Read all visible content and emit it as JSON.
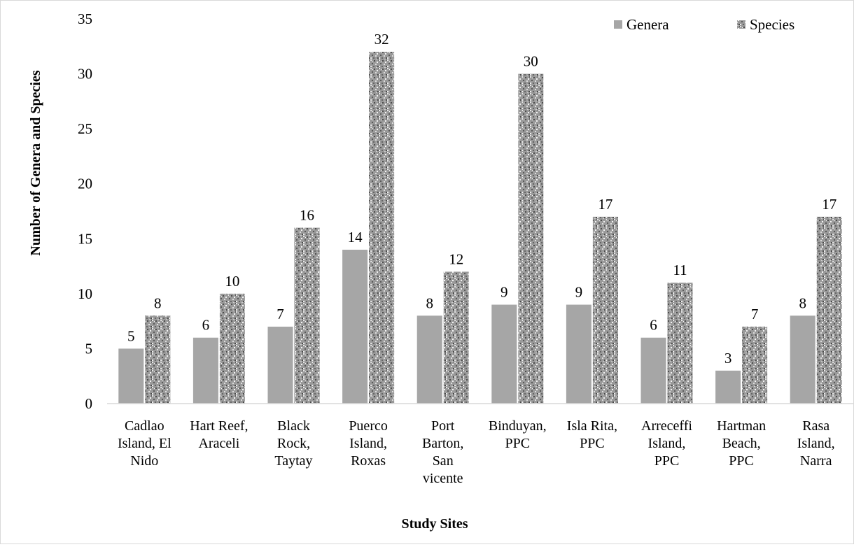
{
  "chart_data": {
    "type": "bar",
    "title": "",
    "xlabel": "Study Sites",
    "ylabel": "Number of Genera  and Species",
    "ylim": [
      0,
      35
    ],
    "yticks": [
      0,
      5,
      10,
      15,
      20,
      25,
      30,
      35
    ],
    "grid": false,
    "legend_position": "top-right",
    "categories": [
      [
        "Cadlao",
        "Island, El",
        "Nido"
      ],
      [
        "Hart Reef,",
        "Araceli"
      ],
      [
        "Black",
        "Rock,",
        "Taytay"
      ],
      [
        "Puerco",
        "Island,",
        "Roxas"
      ],
      [
        "Port",
        "Barton,",
        "San",
        "vicente"
      ],
      [
        "Binduyan,",
        "PPC"
      ],
      [
        "Isla Rita,",
        "PPC"
      ],
      [
        "Arreceffi",
        "Island,",
        "PPC"
      ],
      [
        "Hartman",
        "Beach,",
        "PPC"
      ],
      [
        "Rasa",
        "Island,",
        "Narra"
      ]
    ],
    "series": [
      {
        "name": "Genera",
        "values": [
          5,
          6,
          7,
          14,
          8,
          9,
          9,
          6,
          3,
          8
        ],
        "color": "#a6a6a6",
        "pattern": "solid"
      },
      {
        "name": "Species",
        "values": [
          8,
          10,
          16,
          32,
          12,
          30,
          17,
          11,
          7,
          17
        ],
        "color": "#8c8c8c",
        "pattern": "speckled"
      }
    ]
  }
}
